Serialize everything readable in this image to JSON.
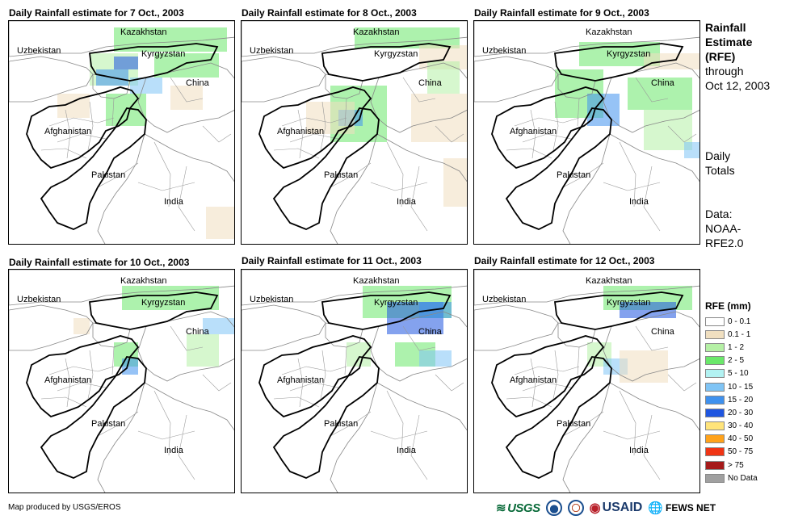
{
  "panels": [
    {
      "title": "Daily Rainfall estimate for 7 Oct., 2003"
    },
    {
      "title": "Daily Rainfall estimate for 8 Oct., 2003"
    },
    {
      "title": "Daily Rainfall estimate for 9 Oct., 2003"
    },
    {
      "title": "Daily Rainfall estimate for 10 Oct., 2003"
    },
    {
      "title": "Daily Rainfall estimate for 11 Oct., 2003"
    },
    {
      "title": "Daily Rainfall estimate for 12 Oct., 2003"
    }
  ],
  "map_labels": {
    "kazakhstan": "Kazakhstan",
    "uzbekistan": "Uzbekistan",
    "kyrgyzstan": "Kyrgyzstan",
    "china": "China",
    "afghanistan": "Afghanistan",
    "pakistan": "Pakistan",
    "india": "India"
  },
  "side": {
    "title_line1": "Rainfall",
    "title_line2": "Estimate",
    "title_line3": "(RFE)",
    "through_line1": "through",
    "through_line2": "Oct 12, 2003",
    "daily_line1": "Daily",
    "daily_line2": "Totals",
    "data_line1": "Data:",
    "data_line2": "NOAA-",
    "data_line3": "RFE2.0"
  },
  "legend": {
    "title": "RFE (mm)",
    "items": [
      {
        "label": "0 - 0.1",
        "color": "#ffffff"
      },
      {
        "label": "0.1 - 1",
        "color": "#f0dfc0"
      },
      {
        "label": "1 - 2",
        "color": "#b5f0a5"
      },
      {
        "label": "2 - 5",
        "color": "#6ae86a"
      },
      {
        "label": "5 - 10",
        "color": "#b2f2f2"
      },
      {
        "label": "10 - 15",
        "color": "#7fc4f5"
      },
      {
        "label": "15 - 20",
        "color": "#3f91ee"
      },
      {
        "label": "20 - 30",
        "color": "#1f56e0"
      },
      {
        "label": "30 - 40",
        "color": "#ffe47a"
      },
      {
        "label": "40 - 50",
        "color": "#ffa21a"
      },
      {
        "label": "50 - 75",
        "color": "#f03414"
      },
      {
        "label": "> 75",
        "color": "#a51a1a"
      },
      {
        "label": "No Data",
        "color": "#a0a0a0"
      }
    ]
  },
  "credit": "Map produced by USGS/EROS",
  "logos": {
    "usgs": "USGS",
    "usaid": "USAID",
    "fewsnet": "FEWS NET"
  }
}
